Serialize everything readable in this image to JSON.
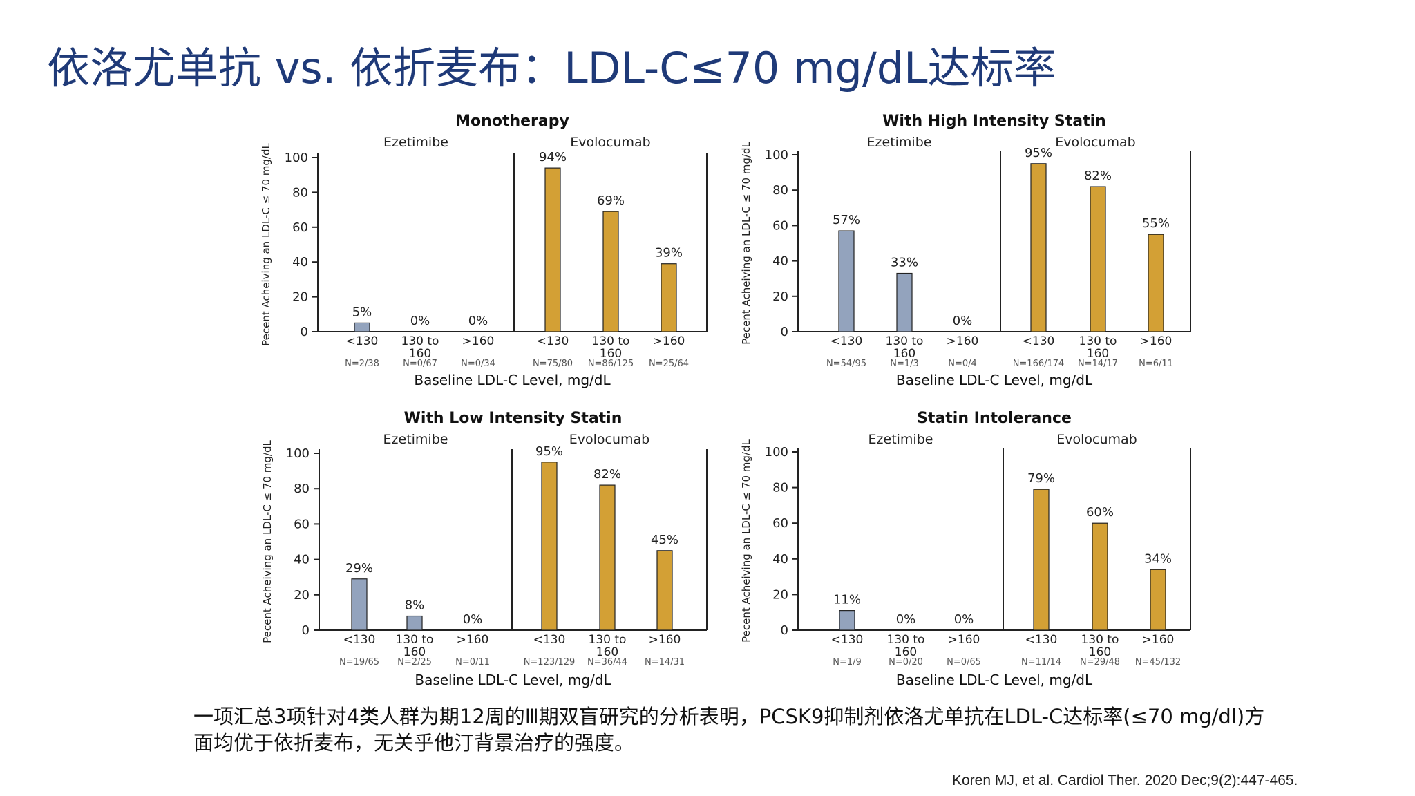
{
  "slide": {
    "title": "依洛尤单抗 vs. 依折麦布：LDL-C≤70 mg/dL达标率",
    "summary_line1": "一项汇总3项针对4类人群为期12周的Ⅲ期双盲研究的分析表明，PCSK9抑制剂依洛尤单抗在LDL-C达标率(≤70 mg/dl)方",
    "summary_line2": "面均优于依折麦布，无关乎他汀背景治疗的强度。",
    "citation": "Koren MJ, et al. Cardiol Ther. 2020 Dec;9(2):447-465."
  },
  "colors": {
    "title": "#1f3a78",
    "ezetimibe": "#93a3bd",
    "evolocumab": "#d3a035",
    "bar_outline": "#222222"
  },
  "chart_data": [
    {
      "type": "bar",
      "title": "Monotherapy",
      "groups": [
        "Ezetimibe",
        "Evolocumab"
      ],
      "categories": [
        "<130",
        "130 to 160",
        ">160",
        "<130",
        "130 to 160",
        ">160"
      ],
      "values": [
        5,
        0,
        0,
        94,
        69,
        39
      ],
      "data_labels": [
        "5%",
        "0%",
        "0%",
        "94%",
        "69%",
        "39%"
      ],
      "n_labels": [
        "N=2/38",
        "N=0/67",
        "N=0/34",
        "N=75/80",
        "N=86/125",
        "N=25/64"
      ],
      "xlabel": "Baseline LDL-C Level, mg/dL",
      "ylabel": "Pecent Acheiving an LDL-C ≤ 70 mg/dL",
      "ylim": [
        0,
        100
      ],
      "yticks": [
        "0",
        "20",
        "40",
        "60",
        "80",
        "100"
      ]
    },
    {
      "type": "bar",
      "title": "With High Intensity Statin",
      "groups": [
        "Ezetimibe",
        "Evolocumab"
      ],
      "categories": [
        "<130",
        "130 to 160",
        ">160",
        "<130",
        "130 to 160",
        ">160"
      ],
      "values": [
        57,
        33,
        0,
        95,
        82,
        55
      ],
      "data_labels": [
        "57%",
        "33%",
        "0%",
        "95%",
        "82%",
        "55%"
      ],
      "n_labels": [
        "N=54/95",
        "N=1/3",
        "N=0/4",
        "N=166/174",
        "N=14/17",
        "N=6/11"
      ],
      "xlabel": "Baseline LDL-C Level, mg/dL",
      "ylabel": "Pecent Acheiving an LDL-C ≤ 70 mg/dL",
      "ylim": [
        0,
        100
      ],
      "yticks": [
        "0",
        "20",
        "40",
        "60",
        "80",
        "100"
      ]
    },
    {
      "type": "bar",
      "title": "With Low Intensity Statin",
      "groups": [
        "Ezetimibe",
        "Evolocumab"
      ],
      "categories": [
        "<130",
        "130 to 160",
        ">160",
        "<130",
        "130 to 160",
        ">160"
      ],
      "values": [
        29,
        8,
        0,
        95,
        82,
        45
      ],
      "data_labels": [
        "29%",
        "8%",
        "0%",
        "95%",
        "82%",
        "45%"
      ],
      "n_labels": [
        "N=19/65",
        "N=2/25",
        "N=0/11",
        "N=123/129",
        "N=36/44",
        "N=14/31"
      ],
      "xlabel": "Baseline LDL-C Level, mg/dL",
      "ylabel": "Pecent Acheiving an LDL-C ≤ 70 mg/dL",
      "ylim": [
        0,
        100
      ],
      "yticks": [
        "0",
        "20",
        "40",
        "60",
        "80",
        "100"
      ]
    },
    {
      "type": "bar",
      "title": "Statin Intolerance",
      "groups": [
        "Ezetimibe",
        "Evolocumab"
      ],
      "categories": [
        "<130",
        "130 to 160",
        ">160",
        "<130",
        "130 to 160",
        ">160"
      ],
      "values": [
        11,
        0,
        0,
        79,
        60,
        34
      ],
      "data_labels": [
        "11%",
        "0%",
        "0%",
        "79%",
        "60%",
        "34%"
      ],
      "n_labels": [
        "N=1/9",
        "N=0/20",
        "N=0/65",
        "N=11/14",
        "N=29/48",
        "N=45/132"
      ],
      "xlabel": "Baseline LDL-C Level, mg/dL",
      "ylabel": "Pecent Acheiving an LDL-C ≤ 70 mg/dL",
      "ylim": [
        0,
        100
      ],
      "yticks": [
        "0",
        "20",
        "40",
        "60",
        "80",
        "100"
      ]
    }
  ]
}
